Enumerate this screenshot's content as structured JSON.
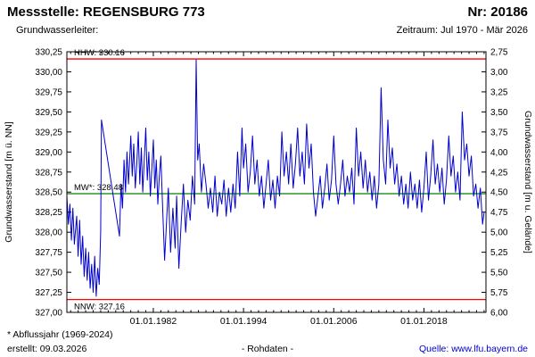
{
  "header": {
    "station_label": "Messstelle: REGENSBURG 773",
    "number_label": "Nr: 20186",
    "aquifer_label": "Grundwasserleiter:",
    "period_label": "Zeitraum: Jul 1970 - Mär 2026"
  },
  "footer": {
    "note": "* Abflussjahr (1969-2024)",
    "created": "erstellt: 09.03.2026",
    "center": "- Rohdaten -",
    "source": "Quelle: www.lfu.bayern.de",
    "source_color": "#0000cc"
  },
  "chart_data": {
    "type": "line",
    "title": "",
    "ylabel_left": "Grundwasserstand [m ü. NN]",
    "ylabel_right": "Grundwasserstand [m u. Gelände]",
    "ylim_left": [
      327.0,
      330.25
    ],
    "ylim_right": [
      6.0,
      2.75
    ],
    "xlim_years": [
      1970.5,
      2026.25
    ],
    "grid": false,
    "legend": "none",
    "x_tick_years": [
      1982,
      1994,
      2006,
      2018
    ],
    "x_tick_labels": [
      "01.01.1982",
      "01.01.1994",
      "01.01.2006",
      "01.01.2018"
    ],
    "left_tick_values": [
      330.25,
      330.0,
      329.75,
      329.5,
      329.25,
      329.0,
      328.75,
      328.5,
      328.25,
      328.0,
      327.75,
      327.5,
      327.25,
      327.0
    ],
    "left_tick_labels": [
      "330,25",
      "330,00",
      "329,75",
      "329,50",
      "329,25",
      "329,00",
      "328,75",
      "328,50",
      "328,25",
      "328,00",
      "327,75",
      "327,50",
      "327,25",
      "327,00"
    ],
    "right_tick_labels": [
      "2,75",
      "3,00",
      "3,25",
      "3,50",
      "3,75",
      "4,00",
      "4,25",
      "4,50",
      "4,75",
      "5,00",
      "5,25",
      "5,50",
      "5,75",
      "6,00"
    ],
    "series_color": "#0000cd",
    "reference_lines": [
      {
        "label": "HHW: 330.16",
        "value": 330.16,
        "color": "#ff0000",
        "label_position": "above"
      },
      {
        "label": "MW*: 328.48",
        "value": 328.48,
        "color": "#008000",
        "label_position": "above"
      },
      {
        "label": "NNW: 327.16",
        "value": 327.16,
        "color": "#ff0000",
        "label_position": "below"
      }
    ],
    "series": [
      {
        "name": "Grundwasserstand Rohdaten",
        "points": [
          [
            1970.5,
            328.45
          ],
          [
            1970.7,
            328.1
          ],
          [
            1970.9,
            328.35
          ],
          [
            1971.1,
            327.9
          ],
          [
            1971.3,
            328.3
          ],
          [
            1971.5,
            327.85
          ],
          [
            1971.8,
            328.2
          ],
          [
            1972,
            327.7
          ],
          [
            1972.2,
            328.15
          ],
          [
            1972.4,
            327.6
          ],
          [
            1972.6,
            327.95
          ],
          [
            1972.8,
            327.45
          ],
          [
            1973,
            327.8
          ],
          [
            1973.2,
            327.4
          ],
          [
            1973.4,
            327.75
          ],
          [
            1973.6,
            327.3
          ],
          [
            1973.8,
            327.6
          ],
          [
            1974,
            327.25
          ],
          [
            1974.2,
            327.7
          ],
          [
            1974.4,
            327.2
          ],
          [
            1974.6,
            327.55
          ],
          [
            1974.8,
            327.35
          ],
          [
            1975,
            328.0
          ],
          [
            1975.1,
            329.4
          ],
          [
            1977.5,
            327.95
          ],
          [
            1977.7,
            328.6
          ],
          [
            1977.9,
            328.3
          ],
          [
            1978.1,
            328.9
          ],
          [
            1978.3,
            328.5
          ],
          [
            1978.5,
            329.0
          ],
          [
            1978.7,
            328.6
          ],
          [
            1979,
            329.2
          ],
          [
            1979.2,
            328.7
          ],
          [
            1979.4,
            329.1
          ],
          [
            1979.6,
            328.55
          ],
          [
            1979.8,
            328.85
          ],
          [
            1980,
            329.25
          ],
          [
            1980.2,
            328.6
          ],
          [
            1980.4,
            329.05
          ],
          [
            1980.6,
            328.5
          ],
          [
            1980.8,
            328.9
          ],
          [
            1981,
            329.3
          ],
          [
            1981.2,
            328.65
          ],
          [
            1981.4,
            329.0
          ],
          [
            1981.6,
            328.45
          ],
          [
            1981.8,
            328.8
          ],
          [
            1982,
            329.15
          ],
          [
            1982.2,
            328.55
          ],
          [
            1982.4,
            328.9
          ],
          [
            1982.6,
            328.35
          ],
          [
            1982.8,
            328.7
          ],
          [
            1983,
            328.95
          ],
          [
            1983.2,
            328.4
          ],
          [
            1983.5,
            327.65
          ],
          [
            1983.8,
            328.2
          ],
          [
            1984,
            328.55
          ],
          [
            1984.3,
            327.75
          ],
          [
            1984.6,
            328.3
          ],
          [
            1984.9,
            327.8
          ],
          [
            1985.1,
            328.45
          ],
          [
            1985.4,
            327.55
          ],
          [
            1985.7,
            328.1
          ],
          [
            1986,
            328.6
          ],
          [
            1986.3,
            328.0
          ],
          [
            1986.6,
            328.4
          ],
          [
            1986.9,
            328.15
          ],
          [
            1987.2,
            328.7
          ],
          [
            1987.5,
            328.35
          ],
          [
            1987.7,
            330.15
          ],
          [
            1987.9,
            328.9
          ],
          [
            1988.1,
            329.1
          ],
          [
            1988.4,
            328.5
          ],
          [
            1988.7,
            328.85
          ],
          [
            1989,
            328.6
          ],
          [
            1989.3,
            328.3
          ],
          [
            1989.6,
            328.55
          ],
          [
            1989.9,
            328.25
          ],
          [
            1990.2,
            328.7
          ],
          [
            1990.5,
            328.2
          ],
          [
            1990.8,
            328.5
          ],
          [
            1991.1,
            328.35
          ],
          [
            1991.4,
            328.65
          ],
          [
            1991.7,
            328.2
          ],
          [
            1992,
            328.55
          ],
          [
            1992.3,
            328.25
          ],
          [
            1992.6,
            328.6
          ],
          [
            1992.9,
            328.3
          ],
          [
            1993.2,
            329.0
          ],
          [
            1993.5,
            328.45
          ],
          [
            1993.8,
            329.3
          ],
          [
            1994,
            328.8
          ],
          [
            1994.3,
            329.1
          ],
          [
            1994.6,
            328.5
          ],
          [
            1994.9,
            328.75
          ],
          [
            1995.2,
            329.2
          ],
          [
            1995.5,
            328.6
          ],
          [
            1995.8,
            328.9
          ],
          [
            1996.1,
            328.45
          ],
          [
            1996.4,
            328.7
          ],
          [
            1996.7,
            328.3
          ],
          [
            1997,
            328.6
          ],
          [
            1997.3,
            328.9
          ],
          [
            1997.6,
            328.4
          ],
          [
            1997.9,
            328.65
          ],
          [
            1998.2,
            328.3
          ],
          [
            1998.5,
            328.7
          ],
          [
            1998.8,
            328.45
          ],
          [
            1999.1,
            329.25
          ],
          [
            1999.4,
            328.7
          ],
          [
            1999.7,
            329.0
          ],
          [
            2000,
            328.6
          ],
          [
            2000.3,
            329.1
          ],
          [
            2000.6,
            328.55
          ],
          [
            2000.9,
            328.85
          ],
          [
            2001.2,
            329.3
          ],
          [
            2001.5,
            328.7
          ],
          [
            2001.8,
            329.0
          ],
          [
            2002.1,
            328.6
          ],
          [
            2002.4,
            329.35
          ],
          [
            2002.7,
            328.8
          ],
          [
            2003,
            329.1
          ],
          [
            2003.3,
            328.5
          ],
          [
            2003.6,
            328.2
          ],
          [
            2003.9,
            328.45
          ],
          [
            2004.2,
            328.7
          ],
          [
            2004.5,
            328.3
          ],
          [
            2004.8,
            328.55
          ],
          [
            2005.1,
            328.85
          ],
          [
            2005.4,
            328.4
          ],
          [
            2005.7,
            328.65
          ],
          [
            2006,
            329.2
          ],
          [
            2006.3,
            328.6
          ],
          [
            2006.6,
            328.35
          ],
          [
            2006.9,
            328.6
          ],
          [
            2007.2,
            328.9
          ],
          [
            2007.5,
            328.45
          ],
          [
            2007.8,
            328.7
          ],
          [
            2008.1,
            328.5
          ],
          [
            2008.4,
            328.8
          ],
          [
            2008.7,
            328.35
          ],
          [
            2009,
            329.3
          ],
          [
            2009.3,
            328.7
          ],
          [
            2009.6,
            329.0
          ],
          [
            2009.9,
            328.55
          ],
          [
            2010.2,
            328.9
          ],
          [
            2010.5,
            328.5
          ],
          [
            2010.8,
            328.75
          ],
          [
            2011.1,
            328.4
          ],
          [
            2011.4,
            328.7
          ],
          [
            2011.7,
            328.3
          ],
          [
            2012,
            328.6
          ],
          [
            2012.3,
            329.8
          ],
          [
            2012.6,
            328.9
          ],
          [
            2012.9,
            328.6
          ],
          [
            2013.2,
            329.4
          ],
          [
            2013.5,
            328.8
          ],
          [
            2013.8,
            329.05
          ],
          [
            2014.1,
            328.6
          ],
          [
            2014.4,
            328.85
          ],
          [
            2014.7,
            328.45
          ],
          [
            2015,
            328.7
          ],
          [
            2015.3,
            328.35
          ],
          [
            2015.6,
            328.6
          ],
          [
            2015.9,
            328.3
          ],
          [
            2016.2,
            328.75
          ],
          [
            2016.5,
            328.4
          ],
          [
            2016.8,
            328.6
          ],
          [
            2017.1,
            328.3
          ],
          [
            2017.4,
            328.65
          ],
          [
            2017.7,
            328.25
          ],
          [
            2018,
            328.55
          ],
          [
            2018.3,
            329.0
          ],
          [
            2018.6,
            328.4
          ],
          [
            2018.9,
            328.7
          ],
          [
            2019.2,
            329.15
          ],
          [
            2019.5,
            328.6
          ],
          [
            2019.8,
            328.85
          ],
          [
            2020.1,
            328.5
          ],
          [
            2020.4,
            328.8
          ],
          [
            2020.7,
            328.35
          ],
          [
            2021,
            328.65
          ],
          [
            2021.3,
            329.2
          ],
          [
            2021.6,
            328.7
          ],
          [
            2021.9,
            328.95
          ],
          [
            2022.2,
            328.5
          ],
          [
            2022.5,
            328.75
          ],
          [
            2022.8,
            328.4
          ],
          [
            2023.1,
            329.5
          ],
          [
            2023.4,
            328.9
          ],
          [
            2023.7,
            329.1
          ],
          [
            2024,
            328.7
          ],
          [
            2024.3,
            328.95
          ],
          [
            2024.6,
            328.45
          ],
          [
            2024.9,
            328.6
          ],
          [
            2025.2,
            328.3
          ],
          [
            2025.5,
            328.55
          ],
          [
            2025.8,
            328.1
          ],
          [
            2026,
            328.25
          ]
        ]
      }
    ]
  }
}
